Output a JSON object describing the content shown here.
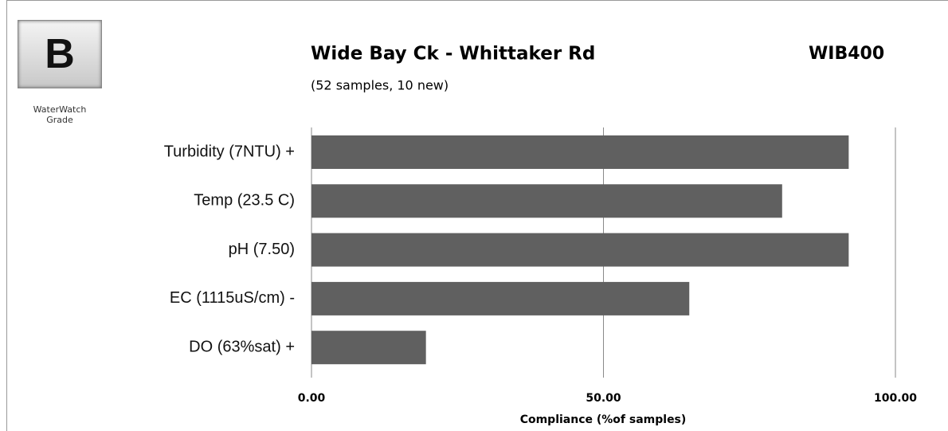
{
  "chart_data": {
    "type": "bar",
    "orientation": "horizontal",
    "grade": "B",
    "grade_label": "WaterWatch Grade",
    "title": "Wide Bay Ck - Whittaker  Rd",
    "site_code": "WIB400",
    "subtitle": "(52 samples, 10 new)",
    "xlabel": "Compliance (%of samples)",
    "categories": [
      "Turbidity (7NTU) +",
      "Temp (23.5 C)",
      "pH (7.50)",
      "EC (1115uS/cm) -",
      "DO (63%sat) +"
    ],
    "values": [
      92,
      80.6,
      92,
      64.7,
      19.6
    ],
    "color": "#606060",
    "xlim": [
      0,
      100
    ],
    "xticks": [
      {
        "value": 0,
        "label": "0.00"
      },
      {
        "value": 50,
        "label": "50.00"
      },
      {
        "value": 100,
        "label": "100.00"
      }
    ],
    "grid": true
  }
}
